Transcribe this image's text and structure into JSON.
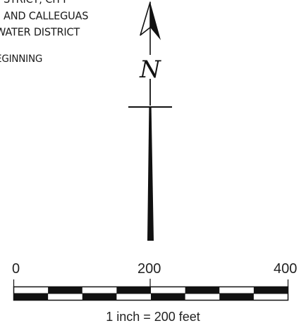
{
  "note": {
    "lines": [
      "STRICT; CITY",
      "AND CALLEGUAS",
      "WATER DISTRICT"
    ],
    "beginning": "EGINNING"
  },
  "north_arrow": {
    "icon": "north-arrow-icon",
    "letter": "N"
  },
  "scale_bar": {
    "labels": [
      "0",
      "200",
      "400"
    ],
    "caption": "1 inch = 200 feet",
    "segments": 8,
    "color": "#111111"
  }
}
